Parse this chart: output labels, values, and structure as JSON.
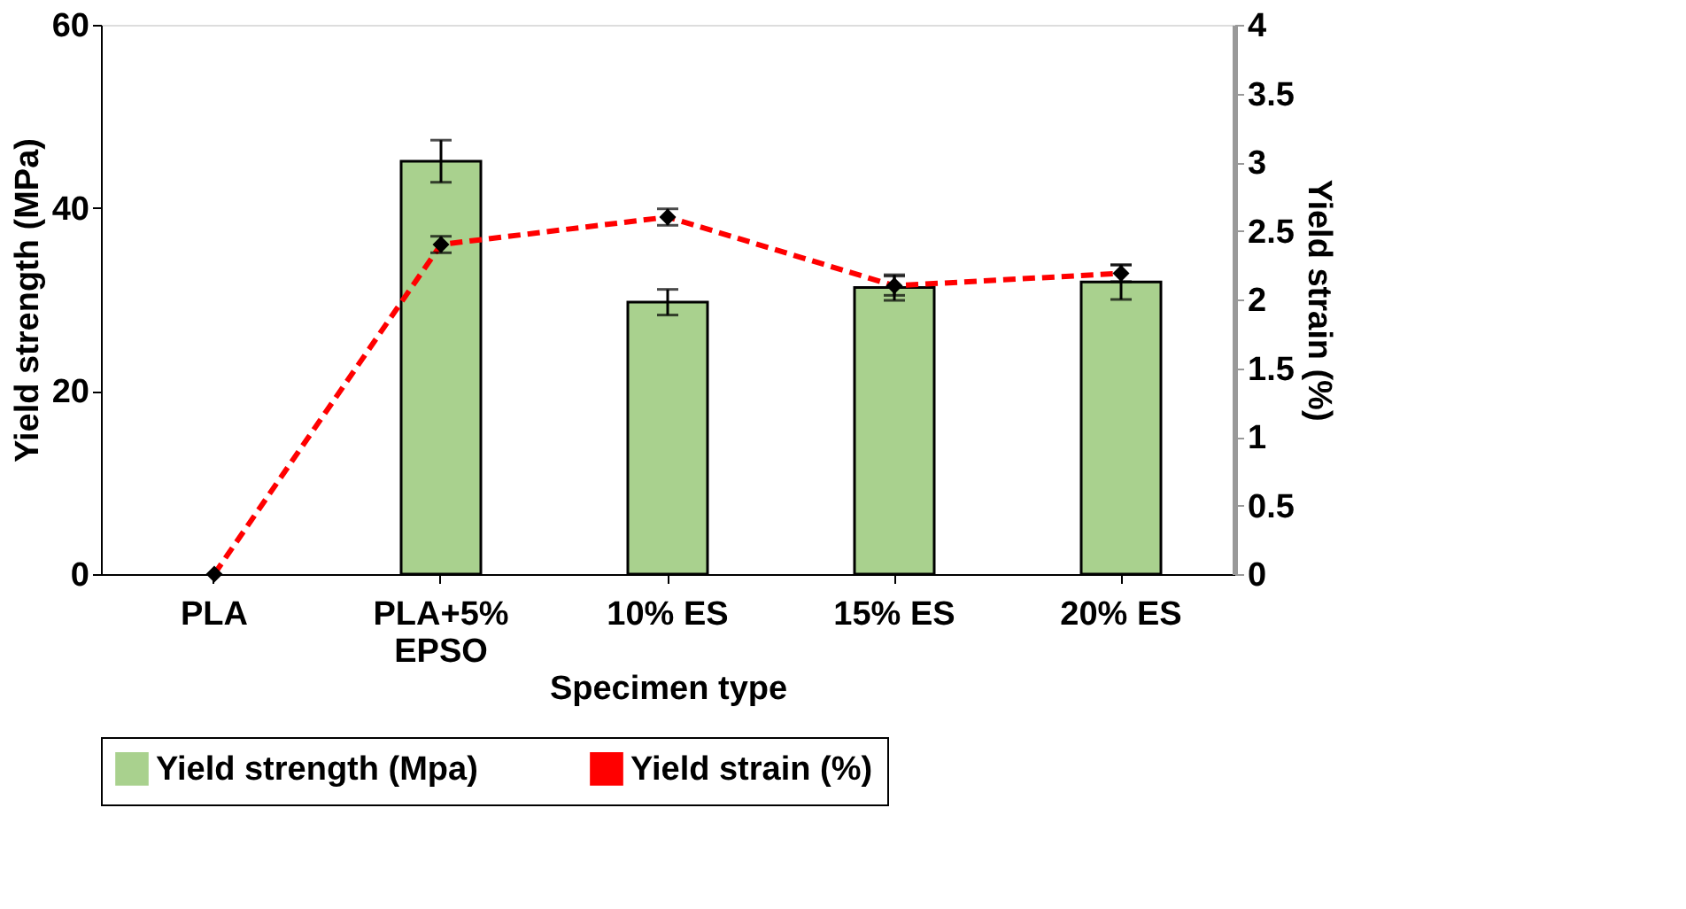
{
  "chart_data": {
    "type": "bar",
    "xlabel": "Specimen type",
    "ylabel": "Yield strength (MPa)",
    "y2label": "Yield strain (%)",
    "categories": [
      "PLA",
      "PLA+5% EPSO",
      "10% ES",
      "15% ES",
      "20% ES"
    ],
    "series": [
      {
        "name": "Yield strength (Mpa)",
        "color": "#a9d18e",
        "values": [
          null,
          45.1,
          29.7,
          31.3,
          31.9
        ],
        "errors": [
          null,
          2.3,
          1.4,
          1.4,
          1.9
        ]
      },
      {
        "name": "Yield strain (%)",
        "type": "line",
        "axis": "y2",
        "color": "#ff0000",
        "line_style": "dashed",
        "marker": "diamond",
        "values": [
          0,
          2.4,
          2.6,
          2.1,
          2.19
        ],
        "errors": [
          null,
          0.06,
          0.06,
          0.07,
          0.06
        ]
      }
    ],
    "ylim": [
      0,
      60
    ],
    "yticks": [
      0,
      20,
      40,
      60
    ],
    "y2lim": [
      0,
      4
    ],
    "y2ticks": [
      0,
      0.5,
      1,
      1.5,
      2,
      2.5,
      3,
      3.5,
      4
    ],
    "grid": false,
    "legend": "bottom"
  }
}
